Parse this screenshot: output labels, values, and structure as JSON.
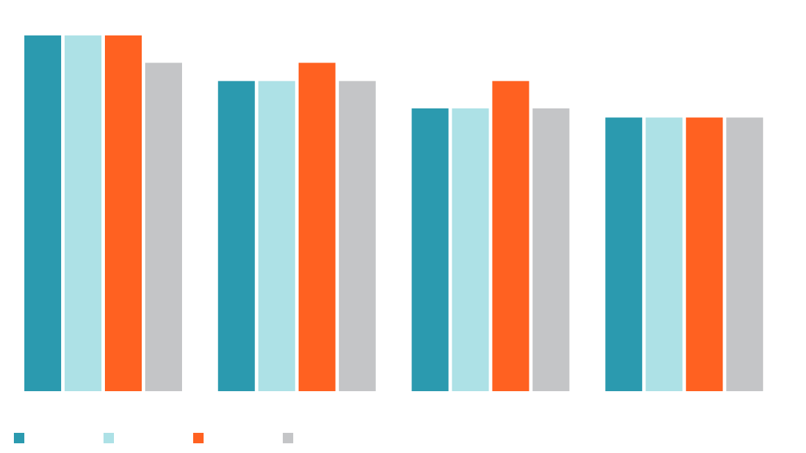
{
  "chart_data": {
    "type": "bar",
    "title": "",
    "xlabel": "",
    "ylabel": "",
    "categories": [
      "",
      "",
      "",
      ""
    ],
    "ylim": [
      0,
      19.5
    ],
    "grid": false,
    "legend_position": "bottom-left",
    "series": [
      {
        "name": "",
        "color": "#2B9AAF",
        "values": [
          19.5,
          17.0,
          15.5,
          15.0
        ]
      },
      {
        "name": "",
        "color": "#ADE1E6",
        "values": [
          19.5,
          17.0,
          15.5,
          15.0
        ]
      },
      {
        "name": "",
        "color": "#FF6121",
        "values": [
          19.5,
          18.0,
          17.0,
          15.0
        ]
      },
      {
        "name": "",
        "color": "#C4C5C7",
        "values": [
          18.0,
          17.0,
          15.5,
          15.0
        ]
      }
    ]
  }
}
